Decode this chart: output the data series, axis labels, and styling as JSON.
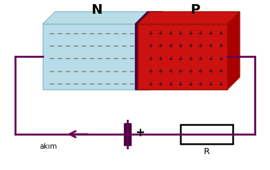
{
  "bg_color": "#ffffff",
  "circuit_color": "#660055",
  "n_color": "#b8dde8",
  "p_color": "#cc1111",
  "p_side_color": "#aa0000",
  "junction_color": "#4a0040",
  "n_label": "N",
  "p_label": "P",
  "battery_color": "#4a0040",
  "akım_label": "akım",
  "plus_label": "+",
  "r_label": "R",
  "dashes_color": "#888888",
  "plus_sign_color": "#111111",
  "edge_n_color": "#90bfcc",
  "edge_p_color": "#991100"
}
